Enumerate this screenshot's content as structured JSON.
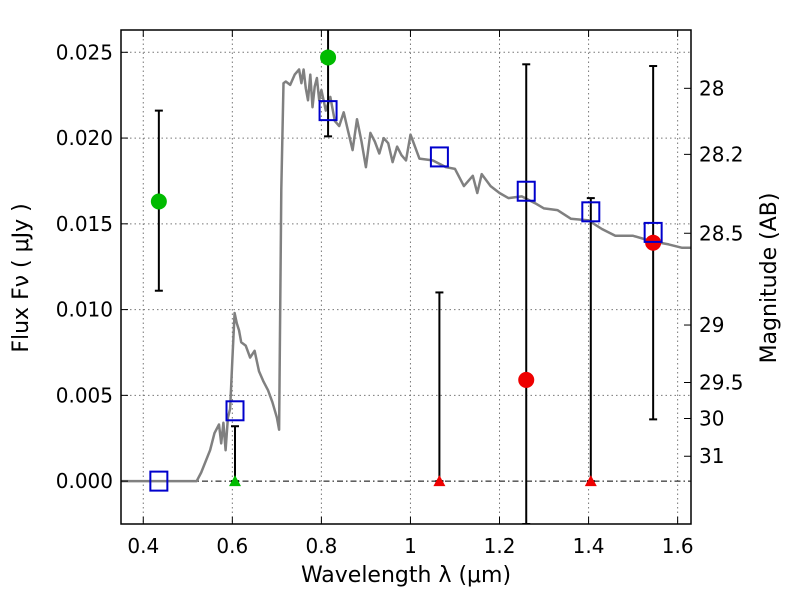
{
  "chart_data": {
    "type": "scatter",
    "xlabel": "Wavelength  λ (μm)",
    "ylabel": "Flux  Fν  ( μJy )",
    "ylabel_right": "Magnitude (AB)",
    "xlim": [
      0.35,
      1.63
    ],
    "ylim": [
      -0.0025,
      0.0263
    ],
    "x_ticks": [
      0.4,
      0.6,
      0.8,
      1.0,
      1.2,
      1.4,
      1.6
    ],
    "x_tick_labels": [
      "0.4",
      "0.6",
      "0.8",
      "1",
      "1.2",
      "1.4",
      "1.6"
    ],
    "y_ticks": [
      0.0,
      0.005,
      0.01,
      0.015,
      0.02,
      0.025
    ],
    "y_tick_labels": [
      "0.000",
      "0.005",
      "0.010",
      "0.015",
      "0.020",
      "0.025"
    ],
    "right_ticks": [
      {
        "label": "28",
        "flux": 0.0229
      },
      {
        "label": "28.2",
        "flux": 0.01905
      },
      {
        "label": "28.5",
        "flux": 0.01445
      },
      {
        "label": "29",
        "flux": 0.0091
      },
      {
        "label": "29.5",
        "flux": 0.00575
      },
      {
        "label": "30",
        "flux": 0.00365
      },
      {
        "label": "31",
        "flux": 0.00145
      }
    ],
    "grid": true,
    "zero_line": 0.0,
    "colors": {
      "model": "#808080",
      "green": "#00bb00",
      "red": "#ee0000",
      "blue": "#0000cc",
      "errorbar": "#000000"
    },
    "series": [
      {
        "kind": "line",
        "color": "#808080",
        "x": [
          0.35,
          0.52,
          0.53,
          0.55,
          0.56,
          0.57,
          0.575,
          0.58,
          0.585,
          0.59,
          0.595,
          0.6,
          0.605,
          0.61,
          0.615,
          0.62,
          0.63,
          0.64,
          0.65,
          0.66,
          0.67,
          0.68,
          0.69,
          0.7,
          0.705,
          0.71,
          0.715,
          0.72,
          0.73,
          0.74,
          0.75,
          0.755,
          0.76,
          0.765,
          0.77,
          0.775,
          0.78,
          0.785,
          0.79,
          0.795,
          0.8,
          0.81,
          0.82,
          0.83,
          0.84,
          0.85,
          0.86,
          0.87,
          0.88,
          0.89,
          0.9,
          0.91,
          0.92,
          0.93,
          0.94,
          0.95,
          0.96,
          0.97,
          0.98,
          0.99,
          1.0,
          1.02,
          1.05,
          1.08,
          1.1,
          1.12,
          1.14,
          1.15,
          1.16,
          1.18,
          1.2,
          1.22,
          1.25,
          1.28,
          1.3,
          1.33,
          1.36,
          1.4,
          1.43,
          1.46,
          1.5,
          1.54,
          1.58,
          1.61,
          1.63
        ],
        "y": [
          0.0,
          0.0,
          0.0005,
          0.0018,
          0.0028,
          0.0033,
          0.0022,
          0.0034,
          0.0018,
          0.0037,
          0.0042,
          0.007,
          0.0098,
          0.0092,
          0.0088,
          0.0081,
          0.0079,
          0.0072,
          0.0076,
          0.0064,
          0.0058,
          0.0053,
          0.0046,
          0.0037,
          0.003,
          0.017,
          0.0232,
          0.0233,
          0.0231,
          0.0237,
          0.024,
          0.0232,
          0.024,
          0.0229,
          0.0222,
          0.0237,
          0.0218,
          0.023,
          0.0235,
          0.0222,
          0.0228,
          0.0216,
          0.0224,
          0.021,
          0.0207,
          0.0215,
          0.0204,
          0.0193,
          0.0211,
          0.0198,
          0.0183,
          0.0203,
          0.0198,
          0.0191,
          0.02,
          0.0197,
          0.0186,
          0.0195,
          0.019,
          0.0187,
          0.0202,
          0.0188,
          0.0187,
          0.0183,
          0.0182,
          0.0172,
          0.0178,
          0.0168,
          0.0179,
          0.0172,
          0.0168,
          0.0165,
          0.0166,
          0.0162,
          0.0159,
          0.0158,
          0.0153,
          0.0152,
          0.0147,
          0.0143,
          0.0143,
          0.014,
          0.0138,
          0.0136,
          0.0136
        ]
      },
      {
        "kind": "circle",
        "color": "#00bb00",
        "points": [
          {
            "x": 0.435,
            "y": 0.0163,
            "lo": 0.0111,
            "hi": 0.0216
          },
          {
            "x": 0.815,
            "y": 0.0247,
            "lo": 0.0201,
            "hi": 0.0265
          }
        ]
      },
      {
        "kind": "triangle",
        "color": "#00bb00",
        "points": [
          {
            "x": 0.606,
            "y": 0.0,
            "lo": 0.0,
            "hi": 0.0032
          }
        ]
      },
      {
        "kind": "circle",
        "color": "#ee0000",
        "points": [
          {
            "x": 1.26,
            "y": 0.0059,
            "lo": -0.0025,
            "hi": 0.0243
          },
          {
            "x": 1.545,
            "y": 0.0139,
            "lo": 0.0036,
            "hi": 0.0242
          }
        ]
      },
      {
        "kind": "triangle",
        "color": "#ee0000",
        "points": [
          {
            "x": 1.065,
            "y": 0.0,
            "lo": 0.0,
            "hi": 0.011
          },
          {
            "x": 1.405,
            "y": 0.0,
            "lo": 0.0,
            "hi": 0.0165
          }
        ]
      },
      {
        "kind": "square",
        "color": "#0000cc",
        "points": [
          {
            "x": 0.435,
            "y": 0.0
          },
          {
            "x": 0.606,
            "y": 0.0041
          },
          {
            "x": 0.815,
            "y": 0.0216
          },
          {
            "x": 1.065,
            "y": 0.0189
          },
          {
            "x": 1.26,
            "y": 0.0169
          },
          {
            "x": 1.405,
            "y": 0.0157
          },
          {
            "x": 1.545,
            "y": 0.0145
          }
        ]
      }
    ]
  }
}
